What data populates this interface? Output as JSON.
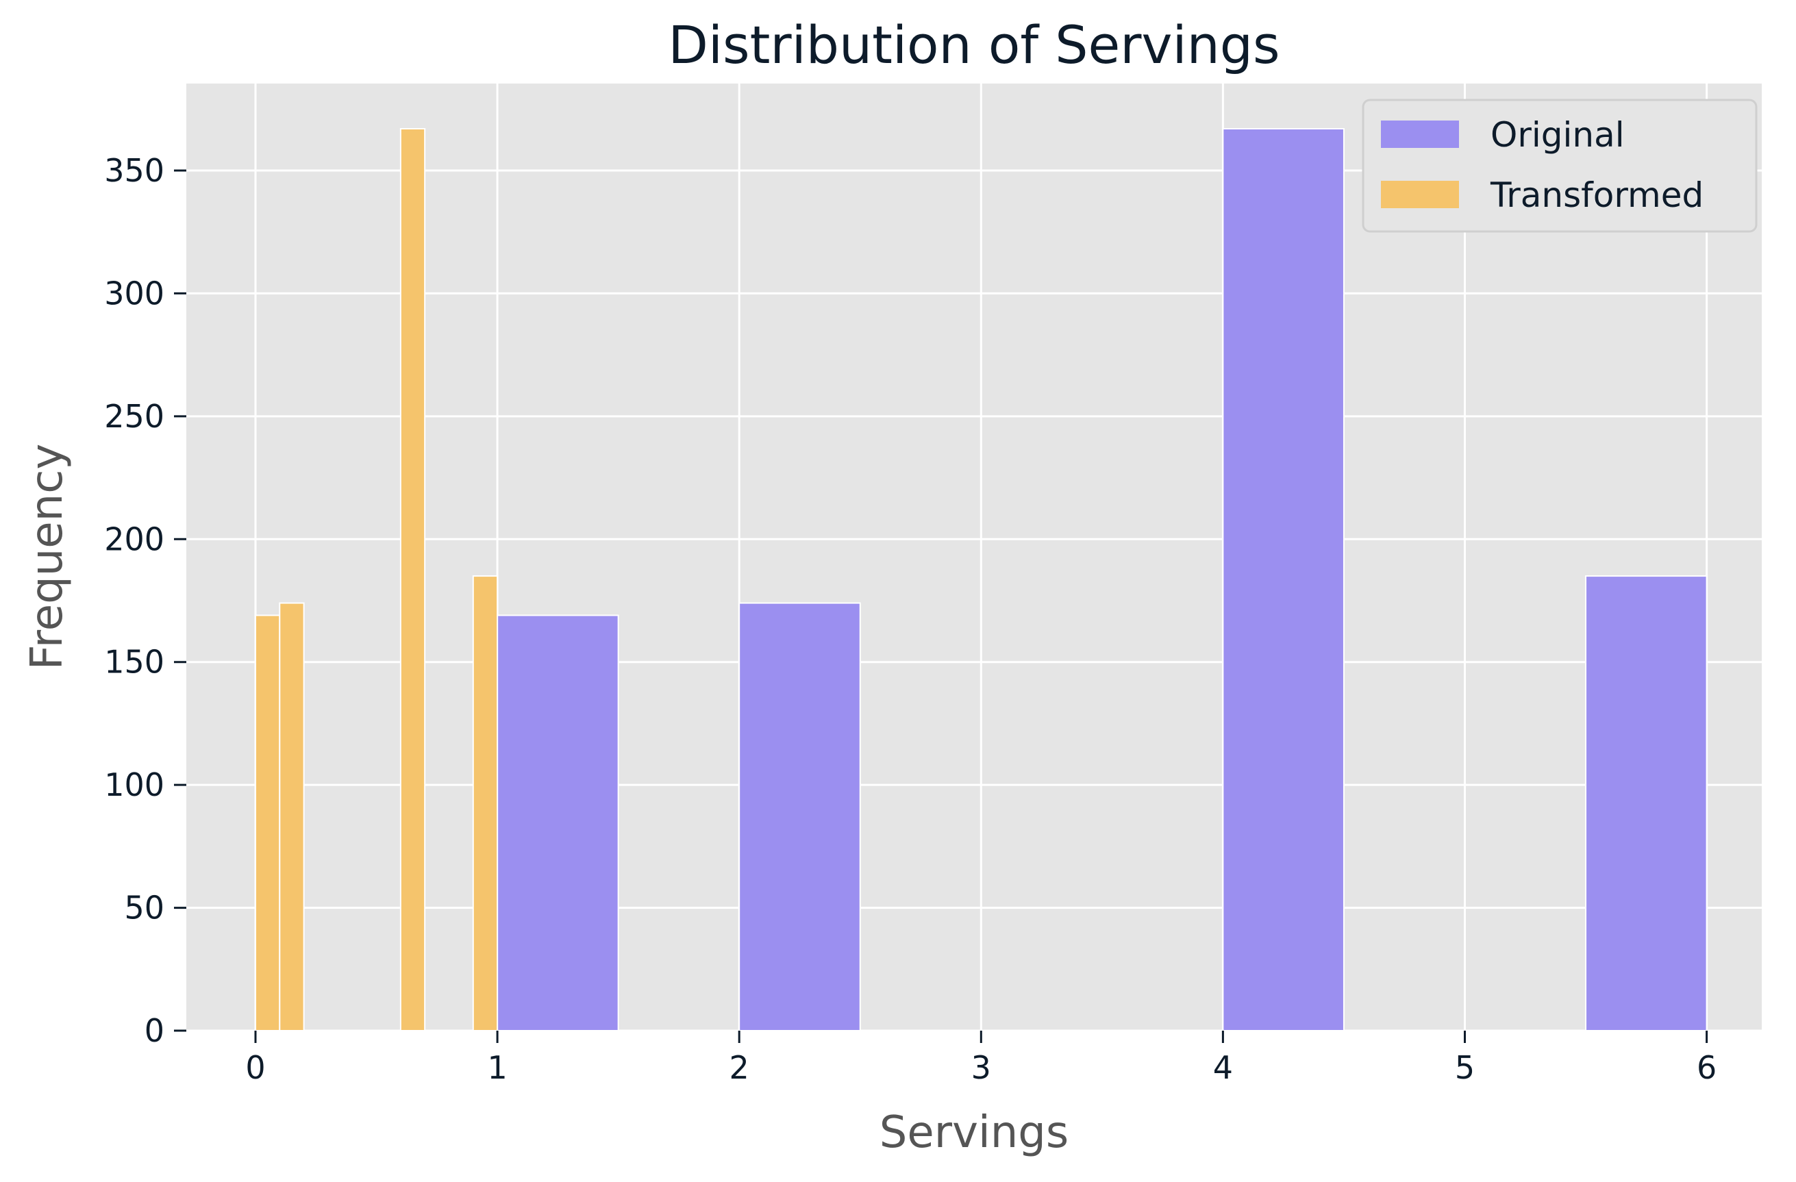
{
  "chart_data": {
    "type": "bar",
    "title": "Distribution of Servings",
    "xlabel": "Servings",
    "ylabel": "Frequency",
    "xlim": [
      -0.3,
      6.3
    ],
    "ylim": [
      0,
      385
    ],
    "xticks": [
      0,
      1,
      2,
      3,
      4,
      5,
      6
    ],
    "yticks": [
      0,
      50,
      100,
      150,
      200,
      250,
      300,
      350
    ],
    "grid": true,
    "legend_position": "top-right",
    "series": [
      {
        "name": "Original",
        "color": "#9b8ff0",
        "bins": [
          {
            "x0": 1.0,
            "x1": 1.5,
            "count": 169
          },
          {
            "x0": 2.0,
            "x1": 2.5,
            "count": 174
          },
          {
            "x0": 4.0,
            "x1": 4.5,
            "count": 367
          },
          {
            "x0": 5.5,
            "x1": 6.0,
            "count": 185
          }
        ]
      },
      {
        "name": "Transformed",
        "color": "#f5c46c",
        "bins": [
          {
            "x0": 0.0,
            "x1": 0.1,
            "count": 169
          },
          {
            "x0": 0.1,
            "x1": 0.2,
            "count": 174
          },
          {
            "x0": 0.6,
            "x1": 0.7,
            "count": 367
          },
          {
            "x0": 0.9,
            "x1": 1.0,
            "count": 185
          }
        ]
      }
    ]
  }
}
